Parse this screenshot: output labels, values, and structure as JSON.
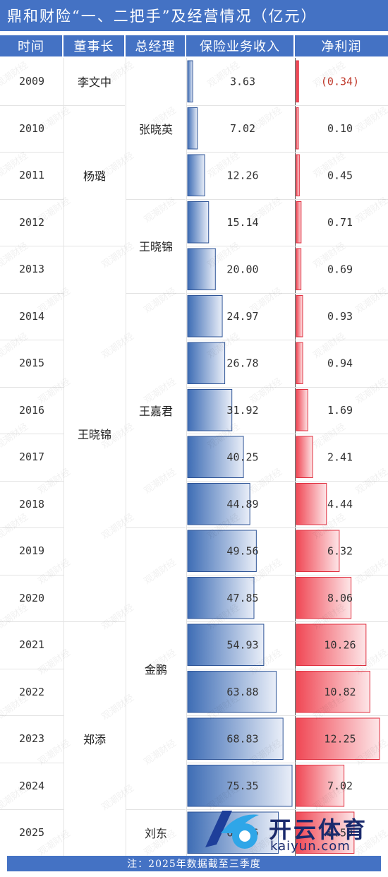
{
  "title": "鼎和财险“一、二把手”及经营情况（亿元）",
  "headers": [
    "时间",
    "董事长",
    "总经理",
    "保险业务收入",
    "净利润"
  ],
  "footer": "注：2025年数据截至三季度",
  "watermark": "观潮财经",
  "logo": {
    "cn": "开云体育",
    "en": "kaiyun.com"
  },
  "chairmen": [
    {
      "name": "李文中",
      "from": 0,
      "to": 0
    },
    {
      "name": "杨璐",
      "from": 1,
      "to": 3
    },
    {
      "name": "王晓锦",
      "from": 4,
      "to": 11
    },
    {
      "name": "郑添",
      "from": 12,
      "to": 16
    }
  ],
  "managers": [
    {
      "name": "张晓英",
      "from": 0,
      "to": 2
    },
    {
      "name": "王晓锦",
      "from": 3,
      "to": 4
    },
    {
      "name": "王嘉君",
      "from": 5,
      "to": 9
    },
    {
      "name": "金鹏",
      "from": 10,
      "to": 15
    },
    {
      "name": "刘东",
      "from": 16,
      "to": 16
    }
  ],
  "colors": {
    "header": "#4472c4",
    "revenue_bar": "#4a77c0",
    "profit_bar": "#f05a64",
    "negative_text": "#c0392b"
  },
  "chart_data": {
    "type": "table",
    "categories": [
      "2009",
      "2010",
      "2011",
      "2012",
      "2013",
      "2014",
      "2015",
      "2016",
      "2017",
      "2018",
      "2019",
      "2020",
      "2021",
      "2022",
      "2023",
      "2024",
      "2025"
    ],
    "series": [
      {
        "name": "保险业务收入",
        "values": [
          3.63,
          7.02,
          12.26,
          15.14,
          20.0,
          24.97,
          26.78,
          31.92,
          40.25,
          44.89,
          49.56,
          47.85,
          54.93,
          63.88,
          68.83,
          75.35,
          65.46
        ],
        "labels": [
          "3.63",
          "7.02",
          "12.26",
          "15.14",
          "20.00",
          "24.97",
          "26.78",
          "31.92",
          "40.25",
          "44.89",
          "49.56",
          "47.85",
          "54.93",
          "63.88",
          "68.83",
          "75.35",
          "65.46"
        ]
      },
      {
        "name": "净利润",
        "values": [
          -0.34,
          0.1,
          0.45,
          0.71,
          0.69,
          0.93,
          0.94,
          1.69,
          2.41,
          4.44,
          6.32,
          8.06,
          10.26,
          10.82,
          12.25,
          7.02,
          8.5
        ],
        "labels": [
          "(0.34)",
          "0.10",
          "0.45",
          "0.71",
          "0.69",
          "0.93",
          "0.94",
          "1.69",
          "2.41",
          "4.44",
          "6.32",
          "8.06",
          "10.26",
          "10.82",
          "12.25",
          "7.02",
          "8.50"
        ]
      }
    ],
    "revenue_max": 75.35,
    "profit_max": 12.25
  }
}
